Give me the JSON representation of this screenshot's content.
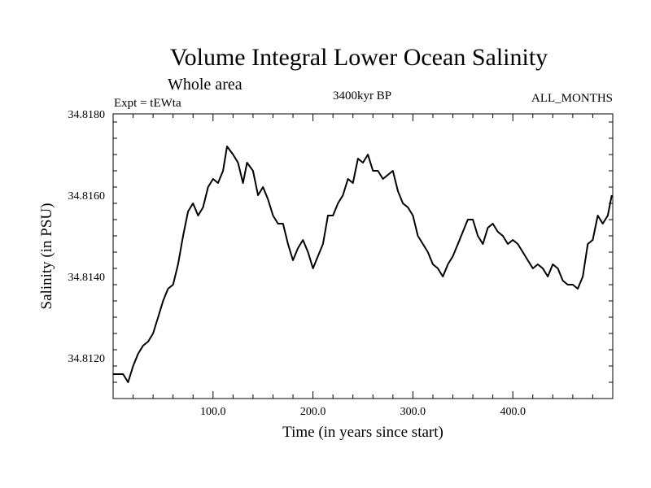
{
  "chart_data": {
    "type": "line",
    "title": "Volume Integral Lower Ocean Salinity",
    "subtitle": "Whole area",
    "expt_label": "Expt = tEWta",
    "period_label": "3400kyr BP",
    "months_label": "ALL_MONTHS",
    "xlabel": "Time (in years since start)",
    "ylabel": "Salinity (in PSU)",
    "xlim": [
      0,
      500
    ],
    "ylim": [
      34.811,
      34.818
    ],
    "x_ticks": [
      100,
      200,
      300,
      400
    ],
    "x_tick_labels": [
      "100.0",
      "200.0",
      "300.0",
      "400.0"
    ],
    "y_ticks": [
      34.812,
      34.814,
      34.816,
      34.818
    ],
    "y_tick_labels": [
      "34.8120",
      "34.8140",
      "34.8160",
      "34.8180"
    ],
    "series": [
      {
        "name": "salinity",
        "x": [
          0,
          5,
          10,
          15,
          20,
          25,
          30,
          35,
          40,
          45,
          50,
          55,
          60,
          65,
          70,
          75,
          80,
          85,
          90,
          95,
          100,
          105,
          110,
          114,
          120,
          125,
          130,
          134,
          140,
          145,
          150,
          155,
          160,
          165,
          170,
          175,
          180,
          185,
          190,
          195,
          200,
          205,
          210,
          215,
          220,
          225,
          230,
          235,
          240,
          245,
          250,
          255,
          260,
          265,
          270,
          275,
          280,
          285,
          290,
          295,
          300,
          305,
          310,
          315,
          320,
          325,
          330,
          335,
          340,
          345,
          350,
          355,
          360,
          365,
          370,
          375,
          380,
          385,
          390,
          395,
          400,
          405,
          410,
          415,
          420,
          425,
          430,
          435,
          440,
          445,
          450,
          455,
          460,
          465,
          470,
          475,
          480,
          485,
          490,
          495,
          499
        ],
        "values": [
          34.8116,
          34.8116,
          34.8116,
          34.8114,
          34.8118,
          34.8121,
          34.8123,
          34.8124,
          34.8126,
          34.813,
          34.8134,
          34.8137,
          34.8138,
          34.8143,
          34.815,
          34.8156,
          34.8158,
          34.8155,
          34.8157,
          34.8162,
          34.8164,
          34.8163,
          34.8166,
          34.8172,
          34.817,
          34.8168,
          34.8163,
          34.8168,
          34.8166,
          34.816,
          34.8162,
          34.8159,
          34.8155,
          34.8153,
          34.8153,
          34.8148,
          34.8144,
          34.8147,
          34.8149,
          34.8146,
          34.8142,
          34.8145,
          34.8148,
          34.8155,
          34.8155,
          34.8158,
          34.816,
          34.8164,
          34.8163,
          34.8169,
          34.8168,
          34.817,
          34.8166,
          34.8166,
          34.8164,
          34.8165,
          34.8166,
          34.8161,
          34.8158,
          34.8157,
          34.8155,
          34.815,
          34.8148,
          34.8146,
          34.8143,
          34.8142,
          34.814,
          34.8143,
          34.8145,
          34.8148,
          34.8151,
          34.8154,
          34.8154,
          34.815,
          34.8148,
          34.8152,
          34.8153,
          34.8151,
          34.815,
          34.8148,
          34.8149,
          34.8148,
          34.8146,
          34.8144,
          34.8142,
          34.8143,
          34.8142,
          34.814,
          34.8143,
          34.8142,
          34.8139,
          34.8138,
          34.8138,
          34.8137,
          34.814,
          34.8148,
          34.8149,
          34.8155,
          34.8153,
          34.8155,
          34.816
        ]
      }
    ]
  }
}
